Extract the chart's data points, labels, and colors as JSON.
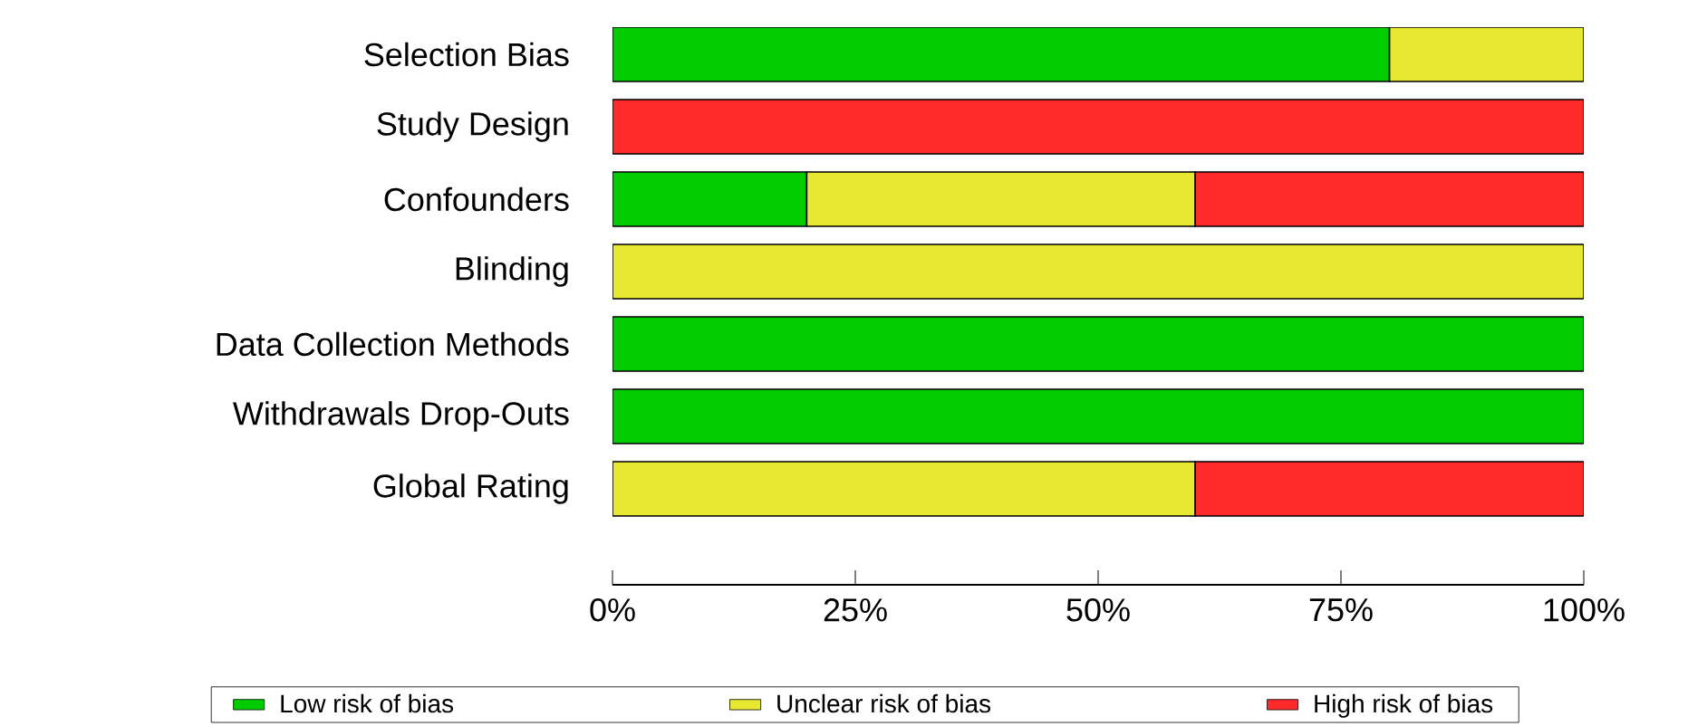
{
  "chart_data": {
    "type": "bar",
    "orientation": "horizontal",
    "stacked": true,
    "categories": [
      "Selection Bias",
      "Study Design",
      "Confounders",
      "Blinding",
      "Data Collection Methods",
      "Withdrawals Drop-Outs",
      "Global Rating"
    ],
    "series": [
      {
        "name": "Low risk of bias",
        "color": "#00cc00",
        "values": [
          80,
          0,
          20,
          0,
          100,
          100,
          0
        ]
      },
      {
        "name": "Unclear risk of bias",
        "color": "#e8e833",
        "values": [
          20,
          0,
          40,
          100,
          0,
          0,
          60
        ]
      },
      {
        "name": "High risk of bias",
        "color": "#ff2a2a",
        "values": [
          0,
          100,
          40,
          0,
          0,
          0,
          40
        ]
      }
    ],
    "xlim": [
      0,
      100
    ],
    "xticks": [
      {
        "value": 0,
        "label": "0%"
      },
      {
        "value": 25,
        "label": "25%"
      },
      {
        "value": 50,
        "label": "50%"
      },
      {
        "value": 75,
        "label": "75%"
      },
      {
        "value": 100,
        "label": "100%"
      }
    ],
    "legend": "bottom",
    "grid": false
  }
}
